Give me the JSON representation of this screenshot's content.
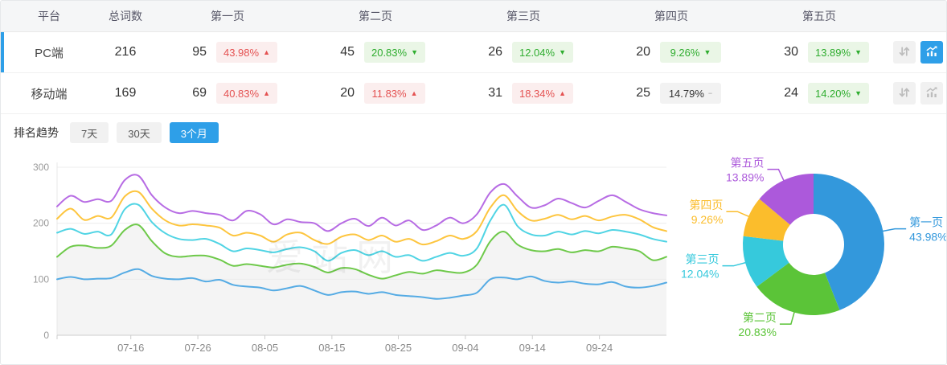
{
  "table": {
    "columns": [
      "平台",
      "总词数",
      "第一页",
      "第二页",
      "第三页",
      "第四页",
      "第五页"
    ],
    "rows": [
      {
        "platform": "PC端",
        "total": "216",
        "selected": true,
        "chart_active": true,
        "pages": [
          {
            "count": "95",
            "pct": "43.98%",
            "dir": "up"
          },
          {
            "count": "45",
            "pct": "20.83%",
            "dir": "down"
          },
          {
            "count": "26",
            "pct": "12.04%",
            "dir": "down"
          },
          {
            "count": "20",
            "pct": "9.26%",
            "dir": "down"
          },
          {
            "count": "30",
            "pct": "13.89%",
            "dir": "down"
          }
        ]
      },
      {
        "platform": "移动端",
        "total": "169",
        "selected": false,
        "chart_active": false,
        "pages": [
          {
            "count": "69",
            "pct": "40.83%",
            "dir": "up"
          },
          {
            "count": "20",
            "pct": "11.83%",
            "dir": "up"
          },
          {
            "count": "31",
            "pct": "18.34%",
            "dir": "up"
          },
          {
            "count": "25",
            "pct": "14.79%",
            "dir": "flat"
          },
          {
            "count": "24",
            "pct": "14.20%",
            "dir": "down"
          }
        ]
      }
    ]
  },
  "trend": {
    "title": "排名趋势",
    "tabs": [
      "7天",
      "30天",
      "3个月"
    ],
    "active_index": 2
  },
  "watermark": "爱站网",
  "dir_glyphs": {
    "up": "▲",
    "down": "▼",
    "flat": "−"
  },
  "colors": {
    "accent": "#2e9fe8",
    "up_text": "#e45252",
    "up_bg": "#fbeeee",
    "down_text": "#2fad2f",
    "down_bg": "#eaf6e6",
    "flat_text": "#333333",
    "flat_bg": "#f2f2f2"
  },
  "chart_data": [
    {
      "type": "line",
      "title": "排名趋势（3个月）",
      "ylim": [
        0,
        300
      ],
      "y_ticks": [
        0,
        100,
        200,
        300
      ],
      "grid": true,
      "legend_position": "none",
      "x_ticks": [
        {
          "label": "07-16",
          "f": 0.121
        },
        {
          "label": "07-26",
          "f": 0.231
        },
        {
          "label": "08-05",
          "f": 0.341
        },
        {
          "label": "08-15",
          "f": 0.451
        },
        {
          "label": "08-25",
          "f": 0.56
        },
        {
          "label": "09-04",
          "f": 0.67
        },
        {
          "label": "09-14",
          "f": 0.78
        },
        {
          "label": "09-24",
          "f": 0.89
        }
      ],
      "area_series": "第二页",
      "area_color": "#f4f4f4",
      "series": [
        {
          "name": "第一页",
          "color": "#55abe4",
          "values": [
            100,
            104,
            100,
            101,
            102,
            112,
            118,
            106,
            101,
            100,
            102,
            96,
            99,
            90,
            87,
            85,
            80,
            84,
            88,
            80,
            72,
            77,
            78,
            74,
            77,
            72,
            70,
            68,
            65,
            67,
            71,
            76,
            100,
            103,
            100,
            105,
            97,
            94,
            96,
            92,
            91,
            95,
            87,
            85,
            88,
            94
          ]
        },
        {
          "name": "第二页",
          "color": "#6ec94a",
          "values": [
            140,
            158,
            160,
            156,
            160,
            188,
            197,
            168,
            146,
            140,
            142,
            142,
            135,
            124,
            127,
            124,
            121,
            126,
            128,
            122,
            112,
            120,
            118,
            108,
            101,
            107,
            113,
            110,
            116,
            113,
            112,
            126,
            168,
            185,
            162,
            152,
            150,
            154,
            148,
            152,
            150,
            158,
            155,
            150,
            134,
            140
          ]
        },
        {
          "name": "第三页",
          "color": "#50d4e4",
          "values": [
            183,
            190,
            181,
            185,
            180,
            225,
            233,
            202,
            182,
            172,
            170,
            172,
            163,
            150,
            155,
            152,
            148,
            154,
            157,
            150,
            133,
            147,
            152,
            143,
            150,
            140,
            143,
            133,
            140,
            147,
            142,
            155,
            205,
            233,
            195,
            180,
            178,
            185,
            180,
            186,
            182,
            188,
            185,
            180,
            172,
            167
          ]
        },
        {
          "name": "第四页",
          "color": "#fdc53e",
          "values": [
            208,
            226,
            206,
            213,
            210,
            248,
            256,
            226,
            205,
            196,
            198,
            196,
            192,
            178,
            183,
            178,
            167,
            180,
            183,
            170,
            163,
            176,
            180,
            170,
            178,
            167,
            172,
            162,
            168,
            178,
            172,
            186,
            228,
            250,
            222,
            205,
            208,
            215,
            207,
            213,
            205,
            212,
            215,
            207,
            193,
            186
          ]
        },
        {
          "name": "第五页",
          "color": "#b76ce4",
          "values": [
            230,
            249,
            238,
            243,
            240,
            277,
            285,
            250,
            228,
            218,
            222,
            218,
            215,
            205,
            222,
            216,
            198,
            207,
            202,
            200,
            186,
            200,
            208,
            195,
            210,
            196,
            205,
            188,
            196,
            210,
            200,
            216,
            255,
            270,
            248,
            228,
            232,
            244,
            236,
            228,
            240,
            250,
            238,
            225,
            218,
            214
          ]
        }
      ]
    },
    {
      "type": "pie",
      "donut": true,
      "inner_radius": 38,
      "outer_radius": 88,
      "slices": [
        {
          "label": "第一页",
          "value": 43.98,
          "color": "#3398dc"
        },
        {
          "label": "第二页",
          "value": 20.83,
          "color": "#5bc438"
        },
        {
          "label": "第三页",
          "value": 12.04,
          "color": "#36c9dc"
        },
        {
          "label": "第四页",
          "value": 9.26,
          "color": "#fbbd2c"
        },
        {
          "label": "第五页",
          "value": 13.89,
          "color": "#ac59db"
        }
      ]
    }
  ]
}
